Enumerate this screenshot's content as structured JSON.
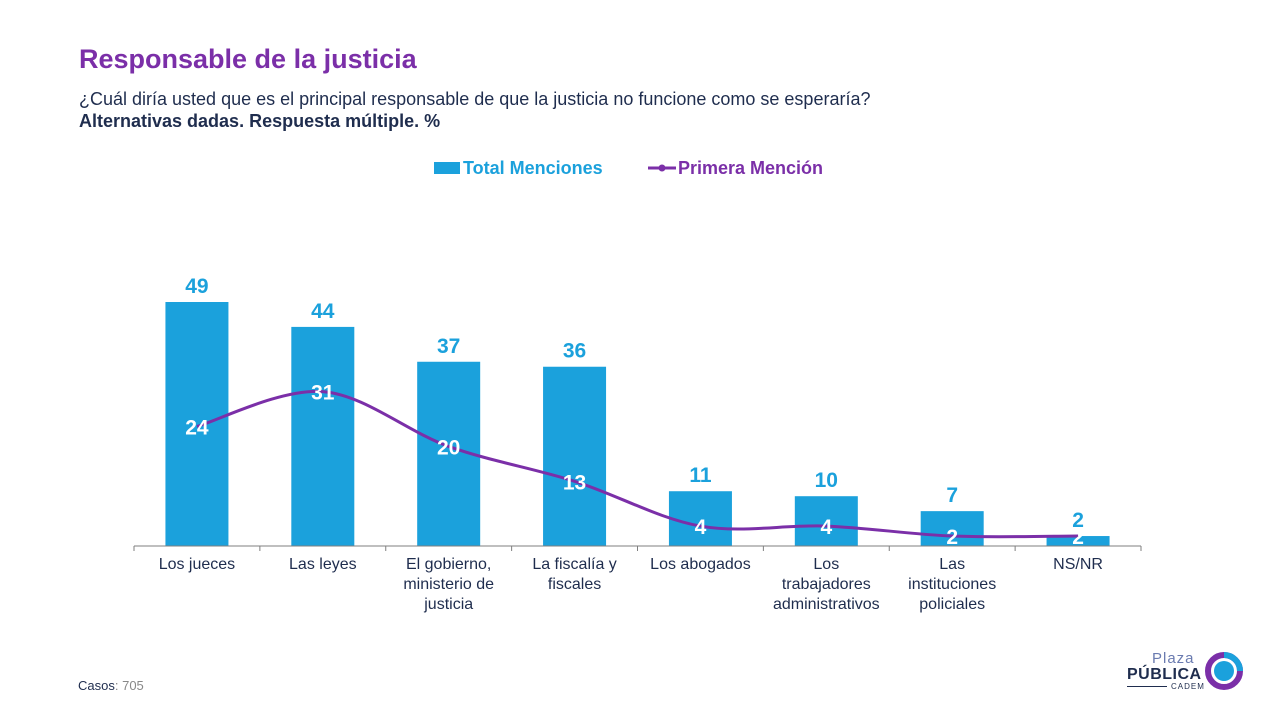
{
  "header": {
    "title": "Responsable de la justicia",
    "subtitle": "¿Cuál diría usted que es el principal responsable de que la justicia no funcione como se esperaría?",
    "subtitle2": "Alternativas dadas. Respuesta múltiple. %"
  },
  "colors": {
    "bar": "#1ba1dc",
    "line": "#7b2fa8",
    "title": "#7b2fa8",
    "text": "#1f2d4e"
  },
  "chart_data": {
    "type": "bar",
    "categories": [
      [
        "Los jueces"
      ],
      [
        "Las leyes"
      ],
      [
        "El gobierno,",
        "ministerio de",
        "justicia"
      ],
      [
        "La fiscalía y",
        "fiscales"
      ],
      [
        "Los abogados"
      ],
      [
        "Los",
        "trabajadores",
        "administrativos"
      ],
      [
        "Las",
        "instituciones",
        "policiales"
      ],
      [
        "NS/NR"
      ]
    ],
    "series": [
      {
        "name": "Total Menciones",
        "type": "bar",
        "values": [
          49,
          44,
          37,
          36,
          11,
          10,
          7,
          2
        ]
      },
      {
        "name": "Primera Mención",
        "type": "line",
        "values": [
          24,
          31,
          20,
          13,
          4,
          4,
          2,
          2
        ]
      }
    ],
    "ylim": [
      0,
      49
    ],
    "legend": "top-center",
    "grid": false
  },
  "footer": {
    "casos_label": "Casos",
    "casos_value": ": 705"
  },
  "logo": {
    "line1": "Plaza",
    "line2": "PÚBLICA",
    "line3": "CADEM"
  }
}
